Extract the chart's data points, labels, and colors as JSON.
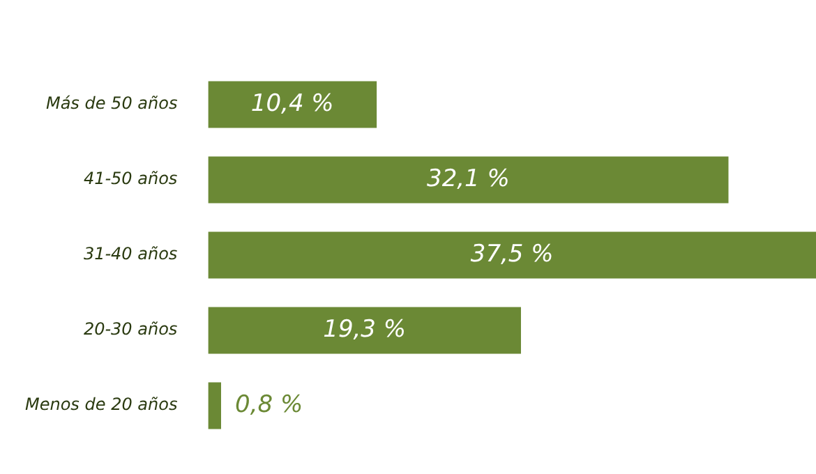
{
  "chart_data": {
    "type": "bar",
    "orientation": "horizontal",
    "categories": [
      "Más de 50 años",
      "41-50 años",
      "31-40 años",
      "20-30 años",
      "Menos de 20 años"
    ],
    "values": [
      10.4,
      32.1,
      37.5,
      19.3,
      0.8
    ],
    "value_labels": [
      "10,4 %",
      "32,1 %",
      "37,5 %",
      "19,3 %",
      "0,8 %"
    ],
    "color": "#6b8935",
    "grid": false,
    "legend": false
  }
}
